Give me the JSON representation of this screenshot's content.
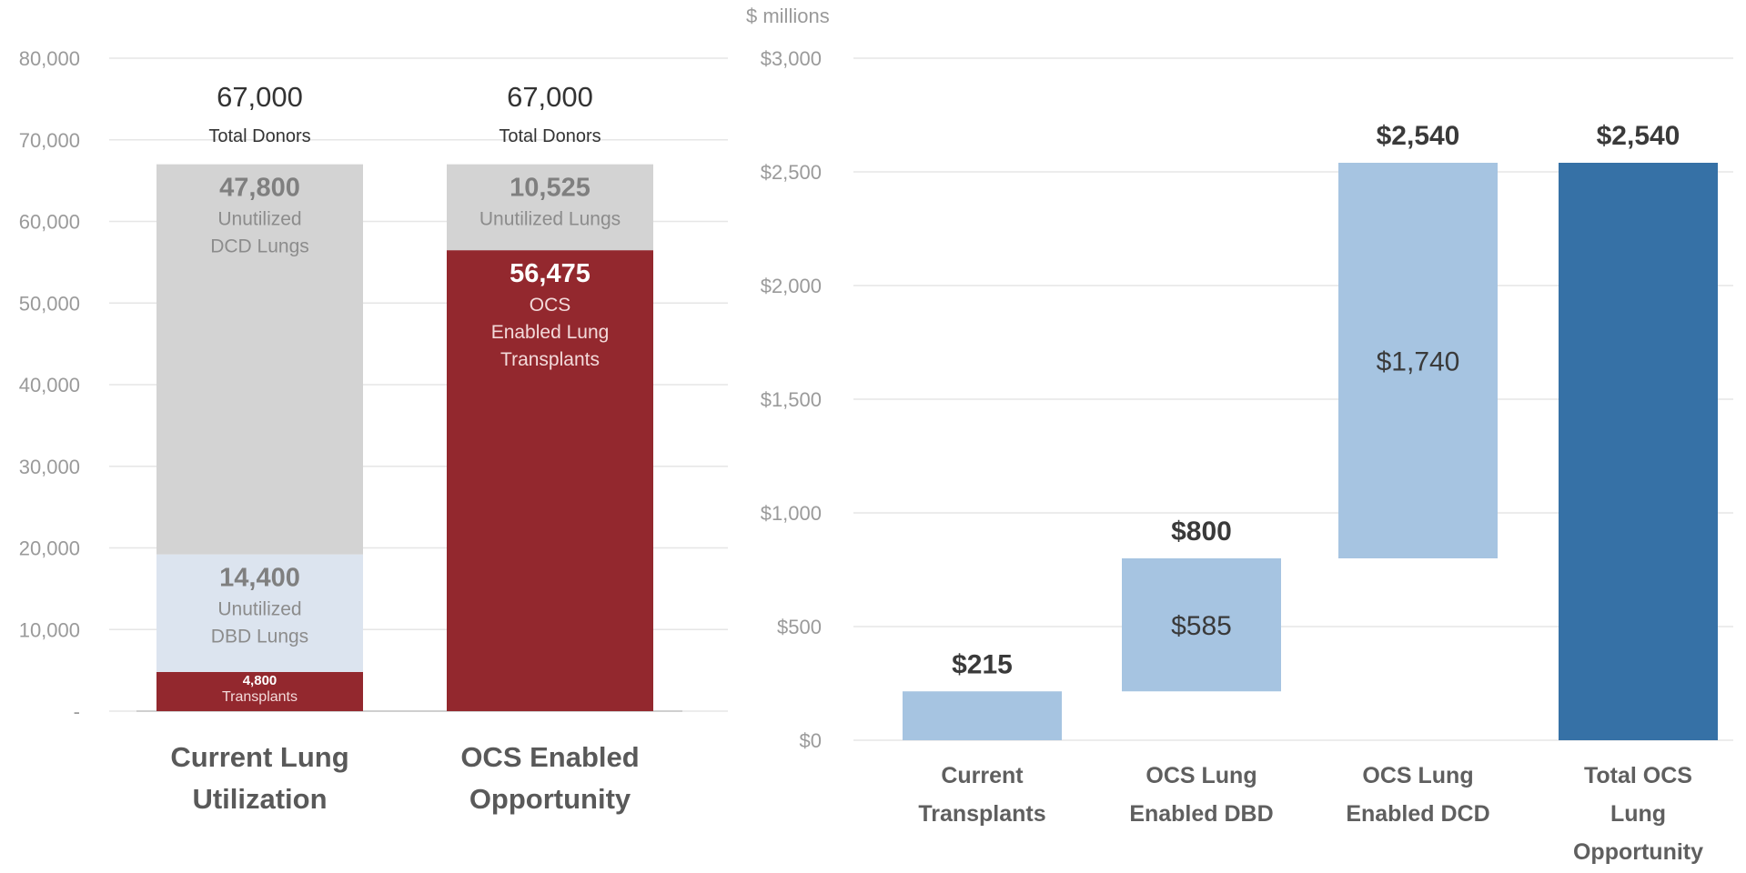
{
  "colors": {
    "dark_red": "#93282e",
    "gray": "#d3d3d3",
    "pale_blue": "#dce4ef",
    "light_blue": "#a6c4e1",
    "dark_blue": "#3671a6",
    "axis_text": "#9a9a9a",
    "bold_text": "#3a3a3a",
    "gray_label": "#7f7f7f",
    "grid": "#e6e6e6"
  },
  "chart_data": [
    {
      "type": "bar",
      "subtype": "stacked",
      "title": "",
      "categories": [
        "Current Lung Utilization",
        "OCS Enabled Opportunity"
      ],
      "category_label_lines": [
        [
          "Current Lung",
          "Utilization"
        ],
        [
          "OCS Enabled",
          "Opportunity"
        ]
      ],
      "ylim": [
        0,
        80000
      ],
      "yticks": [
        0,
        10000,
        20000,
        30000,
        40000,
        50000,
        60000,
        70000,
        80000
      ],
      "ytick_labels": [
        "-",
        "10,000",
        "20,000",
        "30,000",
        "40,000",
        "50,000",
        "60,000",
        "70,000",
        "80,000"
      ],
      "grid": true,
      "totals": [
        {
          "value": "67,000",
          "label": "Total Donors"
        },
        {
          "value": "67,000",
          "label": "Total Donors"
        }
      ],
      "stacks": [
        [
          {
            "value": 4800,
            "color": "dark_red",
            "value_label": "4,800",
            "label_lines": [
              "Transplants"
            ]
          },
          {
            "value": 14400,
            "color": "pale_blue",
            "value_label": "14,400",
            "label_lines": [
              "Unutilized",
              "DBD Lungs"
            ]
          },
          {
            "value": 47800,
            "color": "gray",
            "value_label": "47,800",
            "label_lines": [
              "Unutilized",
              "DCD Lungs"
            ]
          }
        ],
        [
          {
            "value": 56475,
            "color": "dark_red",
            "value_label": "56,475",
            "label_lines": [
              "OCS",
              "Enabled Lung",
              "Transplants"
            ]
          },
          {
            "value": 10525,
            "color": "gray",
            "value_label": "10,525",
            "label_lines": [
              "Unutilized Lungs"
            ]
          }
        ]
      ]
    },
    {
      "type": "bar",
      "subtype": "waterfall",
      "title": "",
      "ylabel": "$ millions",
      "ylim": [
        0,
        3000
      ],
      "yticks": [
        0,
        500,
        1000,
        1500,
        2000,
        2500,
        3000
      ],
      "ytick_labels": [
        "$0",
        "$500",
        "$1,000",
        "$1,500",
        "$2,000",
        "$2,500",
        "$3,000"
      ],
      "grid": true,
      "categories": [
        "Current Transplants",
        "OCS Lung Enabled DBD",
        "OCS Lung Enabled DCD",
        "Total OCS Lung Opportunity"
      ],
      "category_label_lines": [
        [
          "Current",
          "Transplants"
        ],
        [
          "OCS Lung",
          "Enabled DBD"
        ],
        [
          "OCS Lung",
          "Enabled DCD"
        ],
        [
          "Total OCS",
          "Lung",
          "Opportunity"
        ]
      ],
      "bars": [
        {
          "start": 0,
          "end": 215,
          "color": "light_blue",
          "top_label": "$215",
          "inner_label": ""
        },
        {
          "start": 215,
          "end": 800,
          "color": "light_blue",
          "top_label": "$800",
          "inner_label": "$585"
        },
        {
          "start": 800,
          "end": 2540,
          "color": "light_blue",
          "top_label": "$2,540",
          "inner_label": "$1,740"
        },
        {
          "start": 0,
          "end": 2540,
          "color": "dark_blue",
          "top_label": "$2,540",
          "inner_label": ""
        }
      ]
    }
  ]
}
